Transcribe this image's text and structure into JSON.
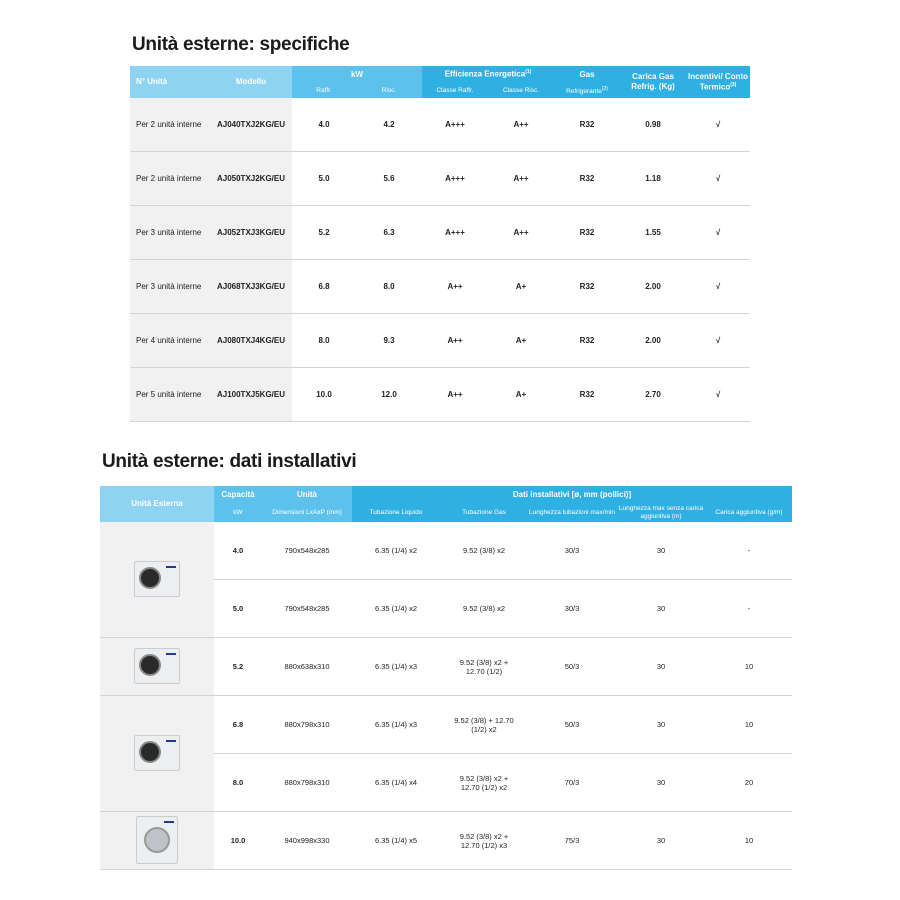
{
  "specifiche": {
    "title": "Unità esterne: specifiche",
    "headers": {
      "n_unita": "N° Unità",
      "modello": "Modello",
      "kw": "kW",
      "raffr": "Raffr.",
      "risc": "Risc.",
      "efficienza": "Efficienza Energetica",
      "efficienza_note": "(1)",
      "classe_raffr": "Classe Raffr.",
      "classe_risc": "Classe Risc.",
      "gas": "Gas",
      "refrigerante": "Refrigerante",
      "refrigerante_note": "(2)",
      "carica": "Carica Gas Refrig. (Kg)",
      "incentivi": "Incentivi/ Conto Termico",
      "incentivi_note": "(3)"
    },
    "rows": [
      {
        "unita": "Per 2 unità interne",
        "modello": "AJ040TXJ2KG/EU",
        "raffr": "4.0",
        "risc": "4.2",
        "classe_raffr": "A+++",
        "classe_risc": "A++",
        "gas": "R32",
        "carica": "0.98",
        "incentivi": "√"
      },
      {
        "unita": "Per 2 unità interne",
        "modello": "AJ050TXJ2KG/EU",
        "raffr": "5.0",
        "risc": "5.6",
        "classe_raffr": "A+++",
        "classe_risc": "A++",
        "gas": "R32",
        "carica": "1.18",
        "incentivi": "√"
      },
      {
        "unita": "Per 3 unità interne",
        "modello": "AJ052TXJ3KG/EU",
        "raffr": "5.2",
        "risc": "6.3",
        "classe_raffr": "A+++",
        "classe_risc": "A++",
        "gas": "R32",
        "carica": "1.55",
        "incentivi": "√"
      },
      {
        "unita": "Per 3 unità interne",
        "modello": "AJ068TXJ3KG/EU",
        "raffr": "6.8",
        "risc": "8.0",
        "classe_raffr": "A++",
        "classe_risc": "A+",
        "gas": "R32",
        "carica": "2.00",
        "incentivi": "√"
      },
      {
        "unita": "Per 4 unità interne",
        "modello": "AJ080TXJ4KG/EU",
        "raffr": "8.0",
        "risc": "9.3",
        "classe_raffr": "A++",
        "classe_risc": "A+",
        "gas": "R32",
        "carica": "2.00",
        "incentivi": "√"
      },
      {
        "unita": "Per 5 unità interne",
        "modello": "AJ100TXJ5KG/EU",
        "raffr": "10.0",
        "risc": "12.0",
        "classe_raffr": "A++",
        "classe_risc": "A+",
        "gas": "R32",
        "carica": "2.70",
        "incentivi": "√"
      }
    ]
  },
  "installativi": {
    "title": "Unità esterne: dati installativi",
    "headers": {
      "unita_esterna": "Unità Esterna",
      "capacita": "Capacità",
      "kw": "kW",
      "unita": "Unità",
      "dimensioni": "Dimensioni LxAxP (mm)",
      "dati": "Dati installativi [ø, mm (pollici)]",
      "liquido": "Tubazione Liquido",
      "gas": "Tubazione Gas",
      "lunghezza": "Lunghezza tubazioni max/min",
      "lunghezza_max": "Lunghezza max senza carica aggiuntiva (m)",
      "carica": "Carica aggiuntiva (g/m)"
    },
    "rows": [
      {
        "kw": "4.0",
        "dim": "790x548x285",
        "liquido": "6.35 (1/4) x2",
        "gas": "9.52 (3/8) x2",
        "lung": "30/3",
        "lung_max": "30",
        "carica": "-"
      },
      {
        "kw": "5.0",
        "dim": "790x548x285",
        "liquido": "6.35 (1/4) x2",
        "gas": "9.52 (3/8) x2",
        "lung": "30/3",
        "lung_max": "30",
        "carica": "-"
      },
      {
        "kw": "5.2",
        "dim": "880x638x310",
        "liquido": "6.35 (1/4) x3",
        "gas": "9.52 (3/8) x2 + 12.70 (1/2)",
        "lung": "50/3",
        "lung_max": "30",
        "carica": "10"
      },
      {
        "kw": "6.8",
        "dim": "880x798x310",
        "liquido": "6.35 (1/4) x3",
        "gas": "9.52 (3/8) + 12.70 (1/2) x2",
        "lung": "50/3",
        "lung_max": "30",
        "carica": "10"
      },
      {
        "kw": "8.0",
        "dim": "880x798x310",
        "liquido": "6.35 (1/4) x4",
        "gas": "9.52 (3/8) x2 + 12.70 (1/2) x2",
        "lung": "70/3",
        "lung_max": "30",
        "carica": "20"
      },
      {
        "kw": "10.0",
        "dim": "940x998x330",
        "liquido": "6.35 (1/4) x5",
        "gas": "9.52 (3/8) x2 + 12.70 (1/2) x3",
        "lung": "75/3",
        "lung_max": "30",
        "carica": "10"
      }
    ]
  }
}
